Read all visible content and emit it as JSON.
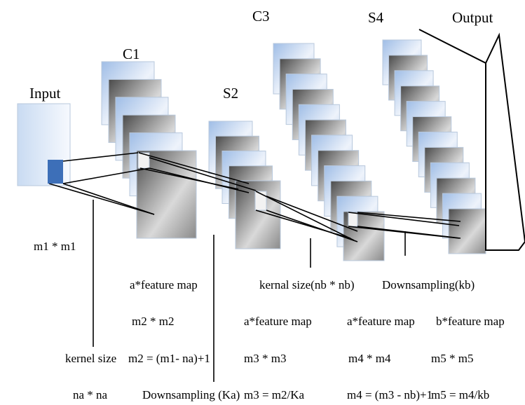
{
  "layers": [
    {
      "label": "Input"
    },
    {
      "label": "C1"
    },
    {
      "label": "S2"
    },
    {
      "label": "C3"
    },
    {
      "label": "S4"
    },
    {
      "label": "Output"
    }
  ],
  "annotations": {
    "input_size": "m1 * m1",
    "c1_maps": "a*feature map",
    "c1_size": "m2 * m2",
    "c1_kernel": "kernel size",
    "c1_formula": "m2 = (m1- na)+1",
    "c1_kernel_size": "na * na",
    "s2_downsampling": "Downsampling (Ka)",
    "c3_kernel": "kernal size(nb * nb)",
    "s4_downsampling": "Downsampling(kb)",
    "s2_maps": "a*feature map",
    "s2_size": "m3 * m3",
    "s2_formula": "m3 = m2/Ka",
    "c3_maps": "a*feature map",
    "c3_size": "m4 * m4",
    "c3_formula": "m4 = (m3 - nb)+1",
    "s4_maps": "b*feature map",
    "s4_size": "m5 * m5",
    "s4_formula": "m5 = m4/kb"
  }
}
